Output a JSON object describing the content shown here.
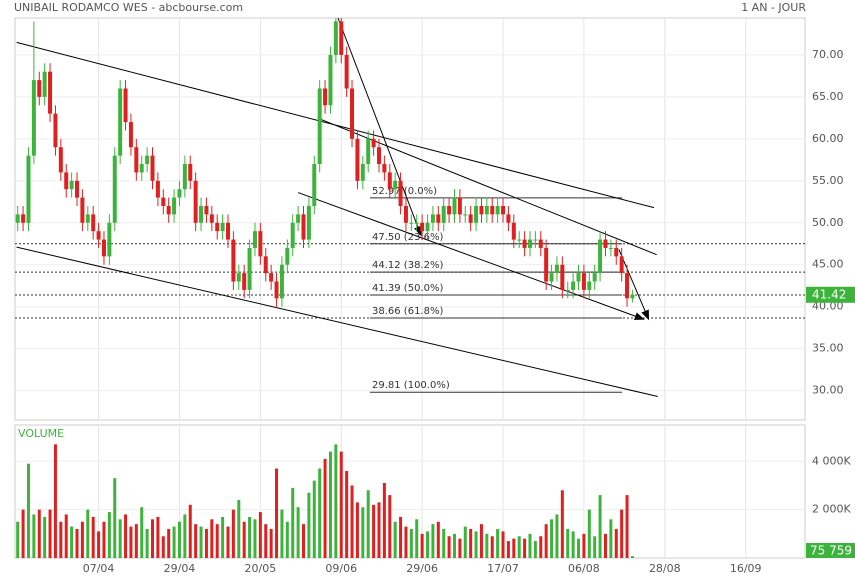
{
  "header": {
    "title": "UNIBAIL RODAMCO WES - abcbourse.com",
    "period": "1 AN - JOUR"
  },
  "chart_data": [
    {
      "type": "candlestick",
      "xlim": [
        -0.5,
        146
      ],
      "xticks": [
        {
          "value": 15,
          "label": "07/04"
        },
        {
          "value": 30,
          "label": "29/04"
        },
        {
          "value": 45,
          "label": "20/05"
        },
        {
          "value": 60,
          "label": "09/06"
        },
        {
          "value": 75,
          "label": "29/06"
        },
        {
          "value": 90,
          "label": "17/07"
        },
        {
          "value": 105,
          "label": "06/08"
        },
        {
          "value": 120,
          "label": "28/08"
        },
        {
          "value": 135,
          "label": "16/09"
        }
      ],
      "ylim": [
        26.5,
        74.4
      ],
      "yticks": [
        {
          "value": 30,
          "label": "30.00"
        },
        {
          "value": 35,
          "label": "35.00"
        },
        {
          "value": 40,
          "label": "40.00"
        },
        {
          "value": 45,
          "label": "45.00"
        },
        {
          "value": 50,
          "label": "50.00"
        },
        {
          "value": 55,
          "label": "55.00"
        },
        {
          "value": 60,
          "label": "60.00"
        },
        {
          "value": 65,
          "label": "65.00"
        },
        {
          "value": 70,
          "label": "70.00"
        }
      ],
      "up_color": "#3cb43c",
      "down_color": "#e02020",
      "open": [
        50,
        51,
        50,
        58,
        67,
        65,
        68,
        63,
        59,
        56,
        54,
        55,
        53,
        50,
        51,
        49,
        48,
        46,
        50,
        58,
        66,
        62,
        59,
        56,
        57,
        58,
        55,
        53,
        52,
        51,
        53,
        54,
        57,
        55,
        50,
        52,
        51,
        50,
        49,
        50,
        48,
        43,
        44,
        42,
        47,
        49,
        46,
        44,
        43,
        41,
        45,
        47,
        50,
        51,
        48,
        52,
        57,
        66,
        64,
        70,
        74,
        70,
        66,
        60,
        55,
        57,
        60,
        59,
        57,
        56,
        54,
        55,
        52,
        50,
        50,
        50,
        49,
        50,
        51,
        50,
        52,
        51,
        53,
        51,
        51,
        50,
        52,
        51,
        52,
        51,
        52,
        51,
        50,
        48,
        48,
        47,
        48,
        48,
        47,
        43,
        44,
        45,
        42,
        42,
        43,
        44,
        42,
        43,
        44,
        48,
        47,
        47,
        46,
        44,
        41
      ],
      "high": [
        52,
        52,
        59,
        74,
        68,
        69,
        69,
        64,
        60,
        57,
        56,
        56,
        54,
        52,
        52,
        50,
        49,
        51,
        59,
        67,
        67,
        63,
        60,
        58,
        59,
        59,
        56,
        54,
        53,
        54,
        55,
        58,
        58,
        56,
        53,
        53,
        52,
        51,
        51,
        51,
        49,
        45,
        45,
        48,
        50,
        50,
        47,
        45,
        44,
        46,
        48,
        51,
        52,
        52,
        53,
        58,
        67,
        67,
        71,
        74.4,
        74.4,
        71,
        67,
        61,
        58,
        61,
        61,
        60,
        58,
        57,
        56,
        56,
        53,
        51,
        51,
        51,
        51,
        52,
        52,
        53,
        53,
        54,
        54,
        52,
        52,
        53,
        53,
        53,
        53,
        53,
        53,
        52,
        51,
        49,
        49,
        49,
        49,
        49,
        48,
        45,
        46,
        46,
        43,
        44,
        45,
        45,
        44,
        45,
        49,
        49,
        48,
        48,
        47,
        45,
        42
      ],
      "low": [
        49,
        49,
        49,
        57,
        64,
        64,
        62,
        58,
        55,
        53,
        53,
        52,
        49,
        49,
        48,
        47,
        45,
        45,
        49,
        57,
        61,
        58,
        55,
        55,
        56,
        54,
        52,
        51,
        50,
        50,
        52,
        53,
        54,
        49,
        49,
        50,
        49,
        48,
        48,
        47,
        42,
        42,
        41,
        41,
        46,
        45,
        43,
        42,
        40,
        40,
        44,
        46,
        49,
        47,
        47,
        51,
        56,
        63,
        63,
        69,
        69,
        65,
        59,
        54,
        54,
        56,
        58,
        56,
        55,
        53,
        53,
        51,
        49,
        49,
        49,
        48,
        48,
        49,
        49,
        49,
        50,
        50,
        50,
        50,
        49,
        49,
        50,
        50,
        50,
        50,
        50,
        49,
        47,
        47,
        46,
        46,
        47,
        46,
        42,
        42,
        43,
        41,
        41,
        41,
        42,
        41,
        41,
        42,
        43,
        46,
        46,
        45,
        43,
        40,
        40.5
      ],
      "close": [
        51,
        50,
        58,
        67,
        65,
        68,
        63,
        59,
        56,
        54,
        55,
        53,
        50,
        51,
        49,
        48,
        46,
        50,
        58,
        66,
        62,
        59,
        56,
        57,
        58,
        55,
        53,
        52,
        51,
        53,
        54,
        57,
        55,
        50,
        52,
        51,
        50,
        49,
        50,
        48,
        43,
        44,
        42,
        47,
        49,
        46,
        44,
        43,
        41,
        45,
        47,
        50,
        51,
        48,
        52,
        57,
        66,
        64,
        70,
        74,
        70,
        66,
        60,
        55,
        57,
        60,
        59,
        57,
        56,
        54,
        55,
        52,
        50,
        50,
        50,
        49,
        50,
        51,
        50,
        52,
        51,
        53,
        51,
        51,
        50,
        52,
        51,
        52,
        51,
        52,
        51,
        50,
        48,
        48,
        47,
        48,
        48,
        47,
        43,
        44,
        45,
        42,
        42,
        43,
        44,
        42,
        43,
        44,
        48,
        47,
        47,
        46,
        44,
        41,
        41.42
      ],
      "last_price_label": "41.42",
      "fibonacci": [
        {
          "value": 52.97,
          "label": "52.97  (0.0%)",
          "extended": false
        },
        {
          "value": 47.5,
          "label": "47.50  (23.6%)",
          "extended": true
        },
        {
          "value": 44.12,
          "label": "44.12  (38.2%)",
          "extended": true
        },
        {
          "value": 41.39,
          "label": "41.39  (50.0%)",
          "extended": true
        },
        {
          "value": 38.66,
          "label": "38.66  (61.8%)",
          "extended": true
        },
        {
          "value": 29.81,
          "label": "29.81  (100.0%)",
          "extended": false
        }
      ],
      "trendlines": [
        {
          "from": [
            -0.2,
            71.5
          ],
          "to": [
            118,
            51.8
          ],
          "arrow": false
        },
        {
          "from": [
            -0.2,
            47.1
          ],
          "to": [
            118.7,
            29.3
          ],
          "arrow": false
        },
        {
          "from": [
            56.3,
            62.3
          ],
          "to": [
            118.5,
            46.2
          ],
          "arrow": false
        },
        {
          "from": [
            52,
            53.6
          ],
          "to": [
            116.1,
            38.5
          ],
          "arrow": true
        },
        {
          "from": [
            59.4,
            74.4
          ],
          "to": [
            74.8,
            48.5
          ],
          "arrow": true
        },
        {
          "from": [
            111.5,
            46.8
          ],
          "to": [
            117,
            38.5
          ],
          "arrow": true
        }
      ]
    },
    {
      "type": "volume",
      "title": "VOLUME",
      "ylim": [
        0,
        5500000
      ],
      "yticks": [
        {
          "value": 2000000,
          "label": "2 000K"
        },
        {
          "value": 4000000,
          "label": "4 000K"
        }
      ],
      "values": [
        1500000,
        2000000,
        3900000,
        1800000,
        2000000,
        1700000,
        2000000,
        4700000,
        1500000,
        1800000,
        1300000,
        1200000,
        1500000,
        2000000,
        1700000,
        1100000,
        1500000,
        1900000,
        3300000,
        1600000,
        1800000,
        1300000,
        1400000,
        2100000,
        1200000,
        1600000,
        1700000,
        900000,
        1200000,
        1300000,
        1500000,
        1800000,
        2200000,
        1400000,
        1300000,
        1200000,
        1600000,
        1400000,
        1700000,
        1300000,
        2000000,
        2400000,
        1500000,
        1700000,
        1600000,
        1900000,
        1400000,
        1200000,
        3700000,
        2000000,
        1500000,
        2900000,
        2100000,
        1400000,
        2700000,
        3200000,
        3700000,
        4100000,
        4400000,
        4700000,
        4400000,
        3600000,
        3000000,
        2300000,
        2100000,
        2800000,
        2200000,
        2300000,
        3100000,
        2600000,
        1500000,
        1700000,
        1300000,
        1200000,
        1600000,
        1000000,
        1100000,
        1400000,
        1500000,
        1200000,
        900000,
        1000000,
        800000,
        1300000,
        1200000,
        1100000,
        1400000,
        1000000,
        900000,
        1200000,
        1100000,
        700000,
        800000,
        900000,
        800000,
        1000000,
        700000,
        900000,
        1400000,
        1600000,
        1800000,
        2800000,
        1200000,
        1100000,
        800000,
        1000000,
        2000000,
        900000,
        2600000,
        1000000,
        1600000,
        1200000,
        2000000,
        2600000,
        75759
      ],
      "last_volume_label": "75 759"
    }
  ]
}
